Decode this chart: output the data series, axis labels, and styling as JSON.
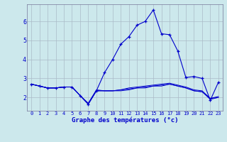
{
  "xlabel": "Graphe des températures (°c)",
  "x_ticks": [
    0,
    1,
    2,
    3,
    4,
    5,
    6,
    7,
    8,
    9,
    10,
    11,
    12,
    13,
    14,
    15,
    16,
    17,
    18,
    19,
    20,
    21,
    22,
    23
  ],
  "x_labels": [
    "0",
    "1",
    "2",
    "3",
    "4",
    "5",
    "6",
    "7",
    "8",
    "9",
    "10",
    "11",
    "12",
    "13",
    "14",
    "15",
    "16",
    "17",
    "18",
    "19",
    "20",
    "21",
    "22",
    "23"
  ],
  "ylim": [
    1.3,
    6.9
  ],
  "xlim": [
    -0.5,
    23.5
  ],
  "yticks": [
    2,
    3,
    4,
    5,
    6
  ],
  "background_color": "#cce8ec",
  "line_color": "#0000cc",
  "grid_color": "#aabbc8",
  "series_main_x": [
    0,
    1,
    2,
    3,
    4,
    5,
    6,
    7,
    8,
    9,
    10,
    11,
    12,
    13,
    14,
    15,
    16,
    17,
    18,
    19,
    20,
    21,
    22,
    23
  ],
  "series_main_y": [
    2.7,
    2.6,
    2.5,
    2.5,
    2.55,
    2.55,
    2.1,
    1.65,
    2.35,
    3.3,
    4.0,
    4.8,
    5.2,
    5.8,
    6.0,
    6.6,
    5.35,
    5.3,
    4.45,
    3.05,
    3.1,
    3.0,
    1.85,
    2.8
  ],
  "series2_x": [
    0,
    1,
    2,
    3,
    4,
    5,
    6,
    7,
    8,
    9,
    10,
    11,
    12,
    13,
    14,
    15,
    16,
    17,
    18,
    19,
    20,
    21,
    22,
    23
  ],
  "series2_y": [
    2.7,
    2.6,
    2.5,
    2.5,
    2.55,
    2.55,
    2.1,
    1.65,
    2.35,
    2.35,
    2.35,
    2.4,
    2.5,
    2.55,
    2.6,
    2.65,
    2.7,
    2.75,
    2.65,
    2.55,
    2.4,
    2.35,
    1.95,
    2.05
  ],
  "series3_x": [
    0,
    1,
    2,
    3,
    4,
    5,
    6,
    7,
    8,
    9,
    10,
    11,
    12,
    13,
    14,
    15,
    16,
    17,
    18,
    19,
    20,
    21,
    22,
    23
  ],
  "series3_y": [
    2.7,
    2.6,
    2.5,
    2.5,
    2.55,
    2.55,
    2.1,
    1.65,
    2.35,
    2.35,
    2.35,
    2.4,
    2.45,
    2.5,
    2.55,
    2.6,
    2.65,
    2.7,
    2.6,
    2.5,
    2.35,
    2.3,
    1.9,
    2.0
  ],
  "series4_x": [
    0,
    1,
    2,
    3,
    4,
    5,
    6,
    7,
    8,
    9,
    10,
    11,
    12,
    13,
    14,
    15,
    16,
    17,
    18,
    19,
    20,
    21,
    22,
    23
  ],
  "series4_y": [
    2.7,
    2.6,
    2.5,
    2.5,
    2.55,
    2.55,
    2.1,
    1.7,
    2.4,
    2.35,
    2.35,
    2.35,
    2.4,
    2.5,
    2.5,
    2.6,
    2.6,
    2.7,
    2.6,
    2.5,
    2.35,
    2.3,
    1.95,
    2.0
  ]
}
